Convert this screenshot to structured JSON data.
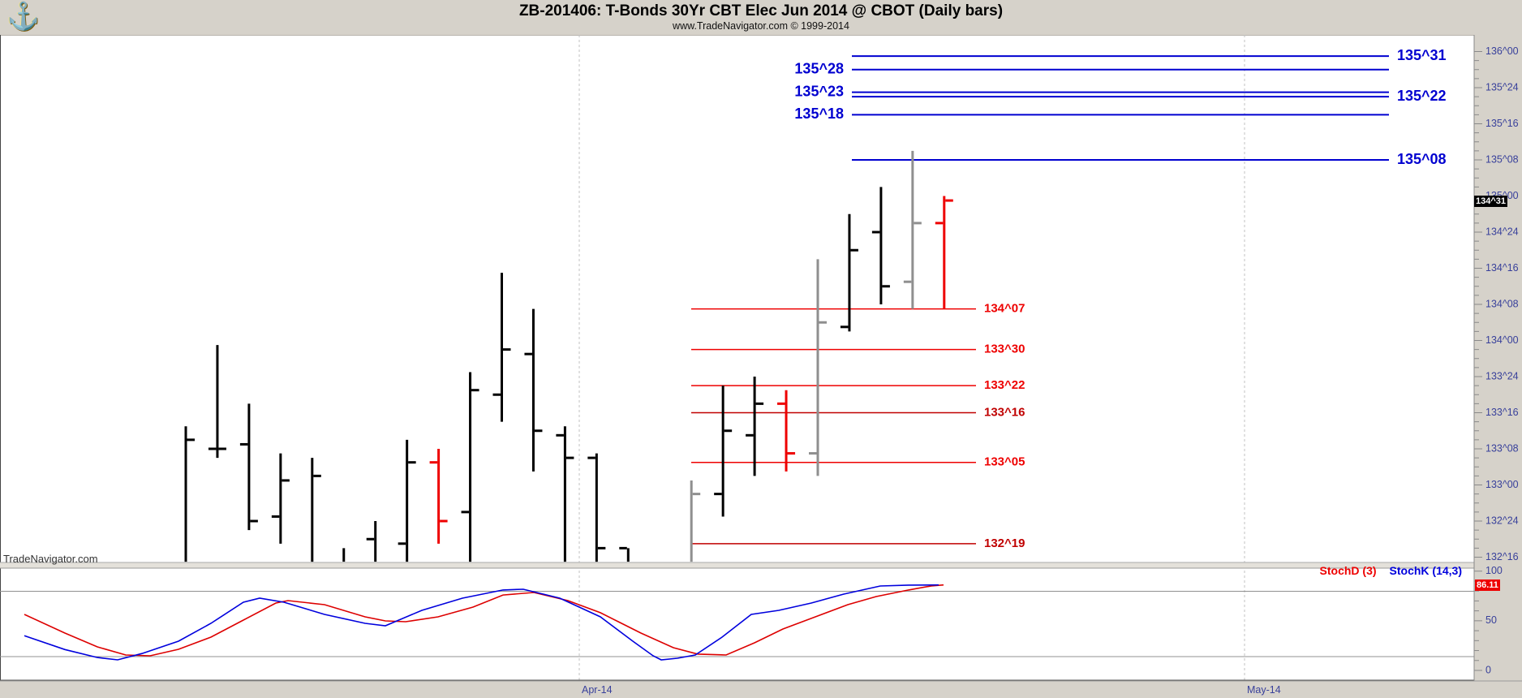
{
  "header": {
    "title": "ZB-201406:  T-Bonds 30Yr CBT Elec Jun 2014 @ CBOT  (Daily bars)",
    "subtitle": "www.TradeNavigator.com © 1999-2014",
    "logo_icon": "sextant"
  },
  "watermark": "TradeNavigator.com",
  "colors": {
    "resistance_blue": "#0000d0",
    "support_red": "#ee0000",
    "support_dark_red": "#c00000",
    "axis_navy": "#39419b",
    "bar_black": "#000000",
    "bar_red": "#ee0000",
    "bar_gray": "#8f8f8f",
    "stoch_k_blue": "#0000dd",
    "stoch_d_red": "#dd0000",
    "panel_strip": "#d6d2ca",
    "gridline_gray": "#909090",
    "dashed_gridline": "#c0c0c0"
  },
  "chart_data": {
    "type": "ohlc-bar",
    "instrument": "ZB-201406",
    "bar_interval": "Daily bars",
    "price_axis": {
      "labels": [
        "136^00",
        "135^24",
        "135^16",
        "135^08",
        "135^00",
        "134^24",
        "134^16",
        "134^08",
        "134^00",
        "133^24",
        "133^16",
        "133^08",
        "133^00",
        "132^24",
        "132^16"
      ],
      "last_price": "134^31"
    },
    "date_axis": [
      "Apr-14",
      "May-14"
    ],
    "resistance_lines": [
      {
        "price": "135^31",
        "label_side": "right"
      },
      {
        "price": "135^28",
        "label_side": "left"
      },
      {
        "price": "135^23",
        "label_side": "left"
      },
      {
        "price": "135^22",
        "label_side": "right"
      },
      {
        "price": "135^18",
        "label_side": "left"
      },
      {
        "price": "135^08",
        "label_side": "right"
      }
    ],
    "support_lines": [
      {
        "price": "134^07",
        "dark": false
      },
      {
        "price": "133^30",
        "dark": false
      },
      {
        "price": "133^22",
        "dark": false
      },
      {
        "price": "133^16",
        "dark": true
      },
      {
        "price": "133^05",
        "dark": false
      },
      {
        "price": "132^19",
        "dark": true
      }
    ],
    "bars": [
      {
        "i": 0,
        "color": "black",
        "high": "133^13",
        "low": "132^15",
        "open": null,
        "close": "133^10"
      },
      {
        "i": 1,
        "color": "black",
        "high": "133^31",
        "low": "133^06",
        "open": "133^08",
        "close": "133^08"
      },
      {
        "i": 2,
        "color": "black",
        "high": "133^18",
        "low": "132^22",
        "open": "133^09",
        "close": "132^24"
      },
      {
        "i": 3,
        "color": "black",
        "high": "133^07",
        "low": "132^19",
        "open": "132^25",
        "close": "133^01"
      },
      {
        "i": 4,
        "color": "black",
        "high": "133^06",
        "low": "132^15",
        "open": null,
        "close": "133^02"
      },
      {
        "i": 5,
        "color": "black",
        "high": "132^18",
        "low": "132^15",
        "open": null,
        "close": null
      },
      {
        "i": 6,
        "color": "black",
        "high": "132^24",
        "low": "132^15",
        "open": "132^20",
        "close": null
      },
      {
        "i": 7,
        "color": "black",
        "high": "133^10",
        "low": "132^15",
        "open": "132^19",
        "close": "133^05"
      },
      {
        "i": 8,
        "color": "red",
        "high": "133^08",
        "low": "132^19",
        "open": "133^05",
        "close": "132^24"
      },
      {
        "i": 9,
        "color": "black",
        "high": "133^25",
        "low": "132^15",
        "open": "132^26",
        "close": "133^21"
      },
      {
        "i": 10,
        "color": "black",
        "high": "134^15",
        "low": "133^14",
        "open": "133^20",
        "close": "133^30"
      },
      {
        "i": 11,
        "color": "black",
        "high": "134^07",
        "low": "133^03",
        "open": "133^29",
        "close": "133^12"
      },
      {
        "i": 12,
        "color": "black",
        "high": "133^13",
        "low": "132^15",
        "open": "133^11",
        "close": "133^06"
      },
      {
        "i": 13,
        "color": "black",
        "high": "133^07",
        "low": "132^15",
        "open": "133^06",
        "close": "132^18"
      },
      {
        "i": 14,
        "color": "black",
        "high": "132^18",
        "low": "132^15",
        "open": "132^18",
        "close": null
      },
      {
        "i": 16,
        "color": "gray",
        "high": "133^01",
        "low": "132^15",
        "open": null,
        "close": "132^30"
      },
      {
        "i": 17,
        "color": "black",
        "high": "133^22",
        "low": "132^25",
        "open": "132^30",
        "close": "133^12"
      },
      {
        "i": 18,
        "color": "black",
        "high": "133^24",
        "low": "133^02",
        "open": "133^11",
        "close": "133^18"
      },
      {
        "i": 19,
        "color": "red",
        "high": "133^21",
        "low": "133^03",
        "open": "133^18",
        "close": "133^07"
      },
      {
        "i": 20,
        "color": "gray",
        "high": "134^18",
        "low": "133^02",
        "open": "133^07",
        "close": "134^04"
      },
      {
        "i": 21,
        "color": "black",
        "high": "134^28",
        "low": "134^02",
        "open": "134^03",
        "close": "134^20"
      },
      {
        "i": 22,
        "color": "black",
        "high": "135^02",
        "low": "134^08",
        "open": "134^24",
        "close": "134^12"
      },
      {
        "i": 23,
        "color": "gray",
        "high": "135^10",
        "low": "134^07",
        "open": "134^13",
        "close": "134^26"
      },
      {
        "i": 24,
        "color": "red",
        "high": "135^00",
        "low": "134^07",
        "open": "134^26",
        "close": "134^31"
      }
    ],
    "stoch": {
      "d_label": "StochD (3)",
      "k_label": "StochK (14,3)",
      "last_value": "86.11",
      "axis_labels": [
        "100",
        "50",
        "0"
      ],
      "k_points": [
        [
          30,
          35
        ],
        [
          80,
          21
        ],
        [
          120,
          13
        ],
        [
          145,
          10.6
        ],
        [
          175,
          17
        ],
        [
          220,
          29.4
        ],
        [
          260,
          47.4
        ],
        [
          300,
          68.7
        ],
        [
          320,
          72.8
        ],
        [
          350,
          68.7
        ],
        [
          400,
          56.4
        ],
        [
          450,
          47.4
        ],
        [
          475,
          45
        ],
        [
          520,
          60.5
        ],
        [
          570,
          72.8
        ],
        [
          620,
          81
        ],
        [
          645,
          81.8
        ],
        [
          690,
          72.8
        ],
        [
          740,
          54
        ],
        [
          780,
          29.4
        ],
        [
          805,
          14.7
        ],
        [
          815,
          10.6
        ],
        [
          835,
          12.3
        ],
        [
          857,
          15.5
        ],
        [
          890,
          33.5
        ],
        [
          926,
          56.4
        ],
        [
          960,
          60.5
        ],
        [
          1000,
          67.9
        ],
        [
          1040,
          76.9
        ],
        [
          1085,
          85
        ],
        [
          1120,
          85.9
        ],
        [
          1157,
          86.1
        ]
      ],
      "d_points": [
        [
          30,
          56.4
        ],
        [
          80,
          37.6
        ],
        [
          120,
          23.7
        ],
        [
          155,
          15.5
        ],
        [
          185,
          14.7
        ],
        [
          220,
          21.3
        ],
        [
          260,
          33.5
        ],
        [
          300,
          50.7
        ],
        [
          340,
          67.9
        ],
        [
          355,
          70.3
        ],
        [
          400,
          66.2
        ],
        [
          450,
          54
        ],
        [
          475,
          49.9
        ],
        [
          500,
          49.1
        ],
        [
          540,
          54
        ],
        [
          583,
          63.8
        ],
        [
          620,
          76
        ],
        [
          658,
          78.5
        ],
        [
          700,
          70.3
        ],
        [
          740,
          58.1
        ],
        [
          790,
          37.6
        ],
        [
          830,
          22.9
        ],
        [
          860,
          16.4
        ],
        [
          895,
          15.5
        ],
        [
          930,
          27.8
        ],
        [
          965,
          41.7
        ],
        [
          1005,
          54
        ],
        [
          1045,
          66.2
        ],
        [
          1080,
          74.4
        ],
        [
          1120,
          81
        ],
        [
          1148,
          85.1
        ],
        [
          1163,
          86.1
        ]
      ]
    }
  }
}
